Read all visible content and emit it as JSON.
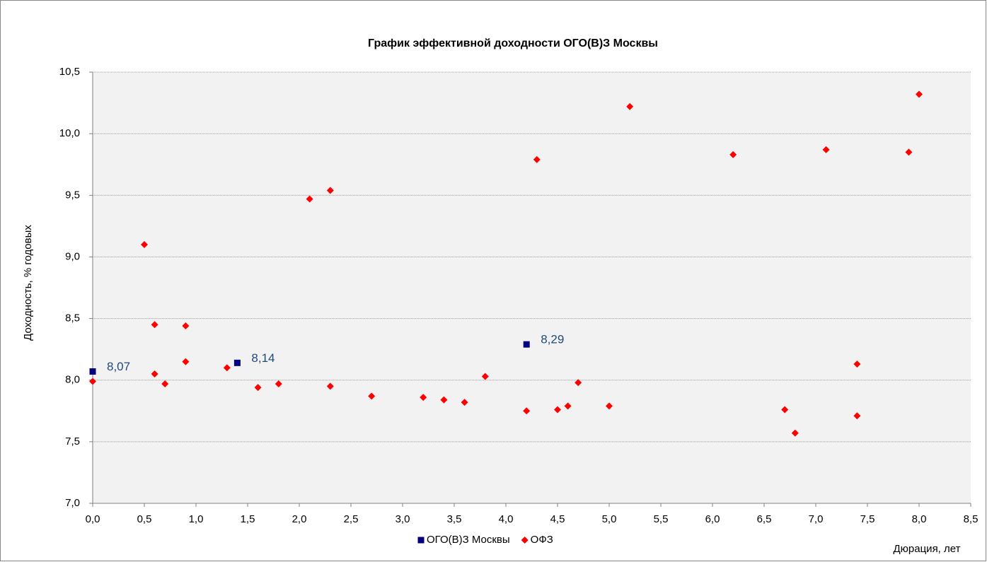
{
  "chart_data": {
    "type": "scatter",
    "title": "График эффективной доходности ОГО(В)З Москвы",
    "x_label": "Дюрация, лет",
    "y_label": "Доходность, % годовых",
    "xlim": [
      0,
      8.5
    ],
    "ylim": [
      7,
      10.5
    ],
    "xticks": [
      {
        "value": 0,
        "label": "0,0"
      },
      {
        "value": 0.5,
        "label": "0,5"
      },
      {
        "value": 1,
        "label": "1,0"
      },
      {
        "value": 1.5,
        "label": "1,5"
      },
      {
        "value": 2,
        "label": "2,0"
      },
      {
        "value": 2.5,
        "label": "2,5"
      },
      {
        "value": 3,
        "label": "3,0"
      },
      {
        "value": 3.5,
        "label": "3,5"
      },
      {
        "value": 4,
        "label": "4,0"
      },
      {
        "value": 4.5,
        "label": "4,5"
      },
      {
        "value": 5,
        "label": "5,0"
      },
      {
        "value": 5.5,
        "label": "5,5"
      },
      {
        "value": 6,
        "label": "6,0"
      },
      {
        "value": 6.5,
        "label": "6,5"
      },
      {
        "value": 7,
        "label": "7,0"
      },
      {
        "value": 7.5,
        "label": "7,5"
      },
      {
        "value": 8,
        "label": "8,0"
      },
      {
        "value": 8.5,
        "label": "8,5"
      }
    ],
    "yticks": [
      {
        "value": 7,
        "label": "7,0"
      },
      {
        "value": 7.5,
        "label": "7,5"
      },
      {
        "value": 8,
        "label": "8,0"
      },
      {
        "value": 8.5,
        "label": "8,5"
      },
      {
        "value": 9,
        "label": "9,0"
      },
      {
        "value": 9.5,
        "label": "9,5"
      },
      {
        "value": 10,
        "label": "10,0"
      },
      {
        "value": 10.5,
        "label": "10,5"
      }
    ],
    "grid": true,
    "legend": "bottom",
    "series": [
      {
        "name": "ОГО(В)З Москвы",
        "color": "#000080",
        "marker": "square",
        "x": [
          0,
          1.4,
          4.2
        ],
        "values": [
          8.07,
          8.14,
          8.29
        ],
        "value_labels": [
          "8,07",
          "8,14",
          "8,29"
        ]
      },
      {
        "name": "ОФЗ",
        "color": "#ff0000",
        "marker": "diamond",
        "x": [
          0,
          0.5,
          0.6,
          0.6,
          0.7,
          0.9,
          0.9,
          1.3,
          1.6,
          1.8,
          2.1,
          2.3,
          2.3,
          2.7,
          3.2,
          3.4,
          3.6,
          3.8,
          4.2,
          4.3,
          4.5,
          4.6,
          4.7,
          5.0,
          5.2,
          6.2,
          6.7,
          6.8,
          7.1,
          7.4,
          7.4,
          7.9,
          8.0
        ],
        "values": [
          7.99,
          9.1,
          8.45,
          8.05,
          7.97,
          8.44,
          8.15,
          8.1,
          7.94,
          7.97,
          9.47,
          9.54,
          7.95,
          7.87,
          7.86,
          7.84,
          7.82,
          8.03,
          7.75,
          9.79,
          7.76,
          7.79,
          7.98,
          7.79,
          10.22,
          9.83,
          7.76,
          7.57,
          9.87,
          8.13,
          7.71,
          9.85,
          10.32
        ]
      }
    ]
  }
}
